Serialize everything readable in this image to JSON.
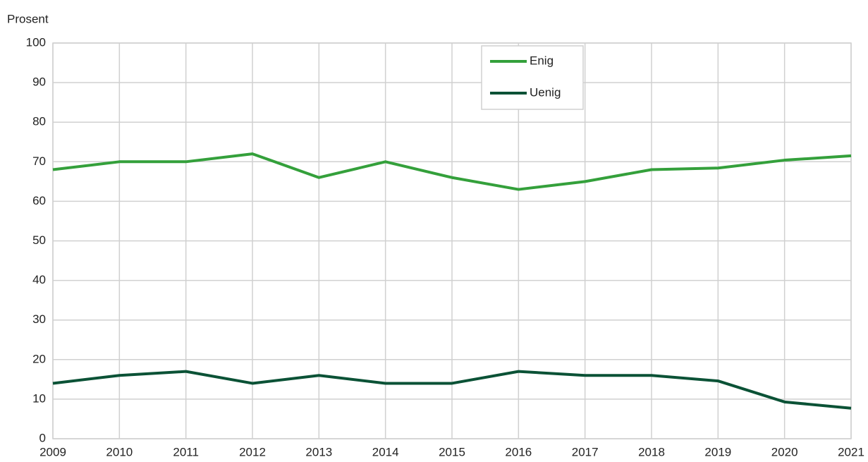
{
  "chart_data": {
    "type": "line",
    "y_label": "Prosent",
    "x": [
      2009,
      2010,
      2011,
      2012,
      2013,
      2014,
      2015,
      2016,
      2017,
      2018,
      2019,
      2020,
      2021
    ],
    "xlim": [
      2009,
      2021
    ],
    "xticks": [
      2009,
      2010,
      2011,
      2012,
      2013,
      2014,
      2015,
      2016,
      2017,
      2018,
      2019,
      2020,
      2021
    ],
    "ylim": [
      0,
      100
    ],
    "yticks": [
      0,
      10,
      20,
      30,
      40,
      50,
      60,
      70,
      80,
      90,
      100
    ],
    "grid": true,
    "legend": "top",
    "series": [
      {
        "name": "Enig",
        "color": "#34a03b",
        "values": [
          68,
          70,
          70,
          72,
          66,
          70,
          66,
          63,
          65,
          68,
          68.4,
          70.4,
          71.5
        ]
      },
      {
        "name": "Uenig",
        "color": "#0b5236",
        "values": [
          14,
          16,
          17,
          14,
          16,
          14,
          14,
          17,
          16,
          16,
          14.6,
          9.3,
          7.7
        ]
      }
    ]
  }
}
